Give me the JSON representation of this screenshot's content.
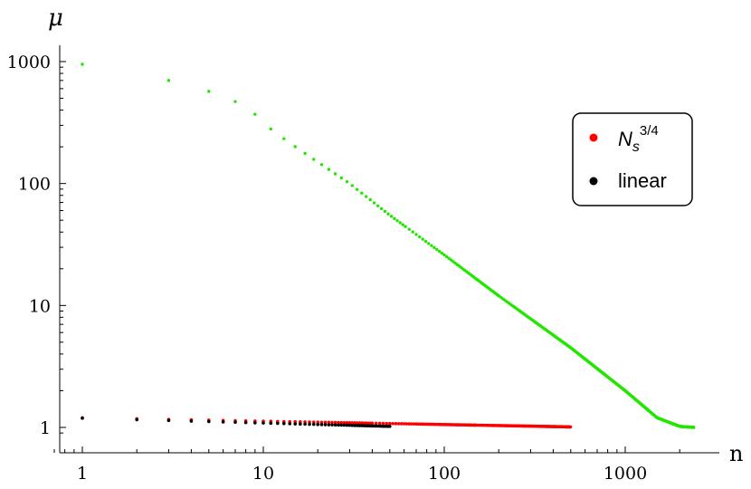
{
  "chart_data": {
    "type": "scatter",
    "xlabel": "n",
    "ylabel": "μ",
    "xscale": "log",
    "yscale": "log",
    "xlim": [
      0.7,
      2700
    ],
    "ylim": [
      0.85,
      1400
    ],
    "xticks": [
      1,
      10,
      100,
      1000
    ],
    "xtick_labels": [
      "1",
      "10",
      "100",
      "1000"
    ],
    "yticks": [
      1,
      10,
      100,
      1000
    ],
    "ytick_labels": [
      "1",
      "10",
      "100",
      "1000"
    ],
    "legend_position": "top-right",
    "series": [
      {
        "name": "N_s^{3/4}",
        "legend_main": "N",
        "legend_sub": "s",
        "legend_sup": "3/4",
        "color": "#ff0000",
        "x_range": [
          1,
          500
        ],
        "y_start": 1.2,
        "y_end": 1.01
      },
      {
        "name": "linear",
        "legend_main": "linear",
        "color": "#000000",
        "x_range": [
          1,
          50
        ],
        "y_start": 1.19,
        "y_end": 1.02
      },
      {
        "color": "#22e600",
        "in_legend": false,
        "x_range": [
          1,
          2400
        ],
        "points_approx": [
          [
            1,
            950
          ],
          [
            3,
            700
          ],
          [
            5,
            570
          ],
          [
            7,
            470
          ],
          [
            9,
            370
          ],
          [
            11,
            280
          ],
          [
            14,
            215
          ],
          [
            20,
            150
          ],
          [
            30,
            100
          ],
          [
            50,
            55
          ],
          [
            100,
            26
          ],
          [
            200,
            12
          ],
          [
            500,
            4.5
          ],
          [
            1000,
            2
          ],
          [
            1500,
            1.2
          ],
          [
            2000,
            1.02
          ],
          [
            2400,
            1.0
          ]
        ]
      }
    ]
  }
}
